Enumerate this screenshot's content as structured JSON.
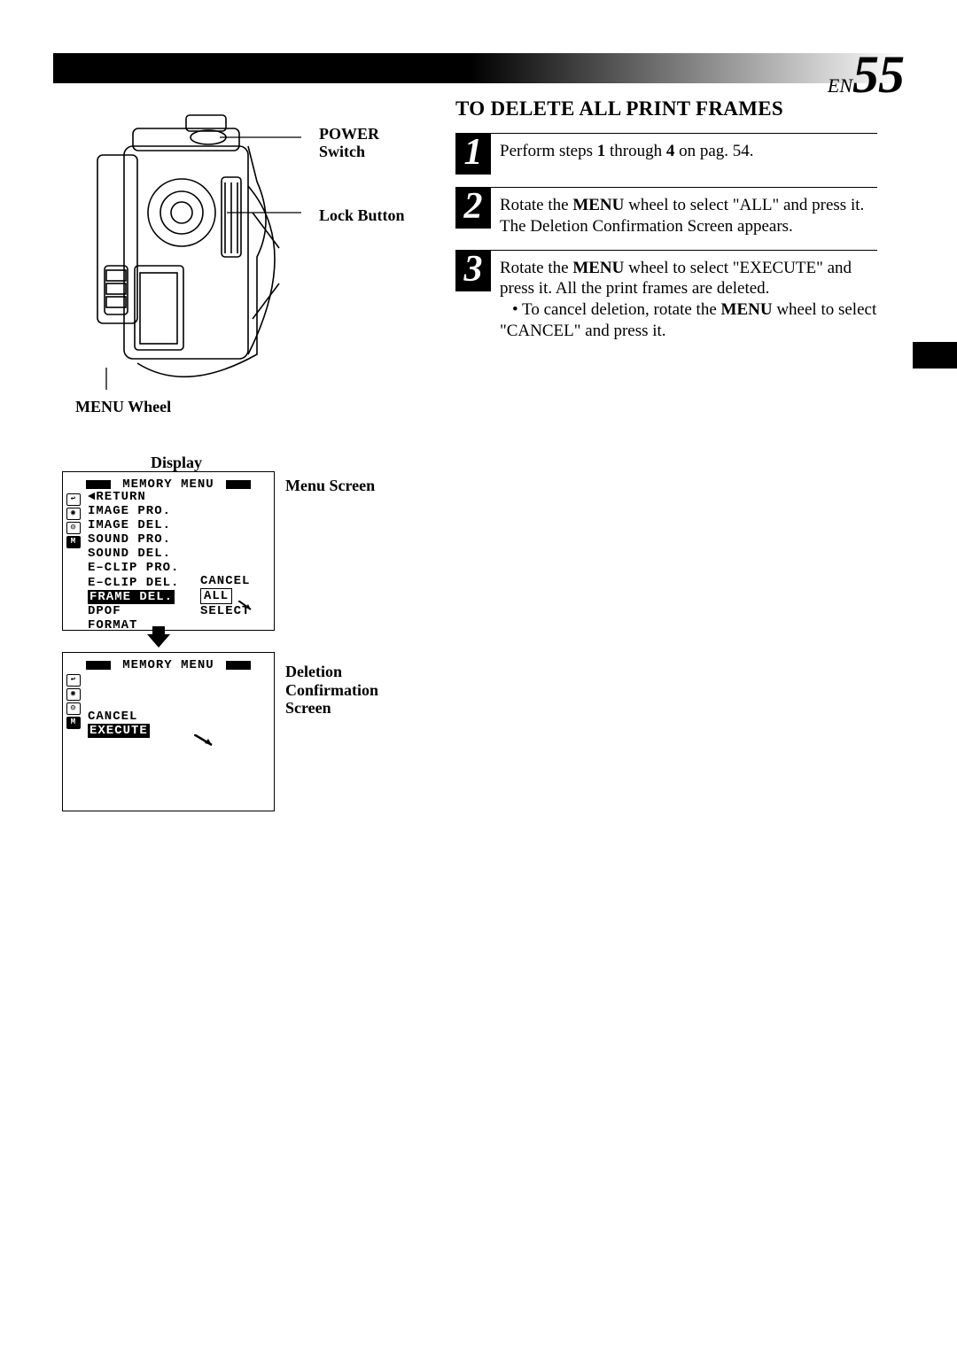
{
  "page": {
    "en_prefix": "EN",
    "number": "55"
  },
  "callouts": {
    "power_switch": "POWER\nSwitch",
    "lock_button": "Lock Button",
    "menu_wheel": "MENU Wheel"
  },
  "display_label": "Display",
  "menu_screen_label": "Menu Screen",
  "confirm_screen_label": "Deletion\nConfirmation\nScreen",
  "menu_screen": {
    "header": "MEMORY  MENU",
    "items": [
      "◄RETURN",
      "IMAGE PRO.",
      "IMAGE DEL.",
      "SOUND PRO.",
      "SOUND DEL.",
      "E–CLIP PRO.",
      "E–CLIP DEL.",
      "FRAME DEL.",
      "DPOF",
      "FORMAT"
    ],
    "highlighted_index": 7,
    "submenu": [
      "CANCEL",
      "ALL",
      "SELECT"
    ],
    "submenu_boxed_index": 1
  },
  "confirm_screen": {
    "header": "MEMORY  MENU",
    "items": [
      "CANCEL",
      "EXECUTE"
    ],
    "highlighted_index": 1
  },
  "section_heading": "TO DELETE ALL PRINT FRAMES",
  "steps": [
    {
      "num": "1",
      "html": "Perform steps <b>1</b> through <b>4</b> on pag. 54."
    },
    {
      "num": "2",
      "html": "Rotate the <b>MENU</b> wheel to select \"ALL\" and press it. The Deletion Confirmation Screen appears."
    },
    {
      "num": "3",
      "html": "Rotate the <b>MENU</b> wheel to select \"EXECUTE\" and press it. All the print frames are deleted.<br><span class=\"bullet-line\">• To cancel deletion, rotate the <b>MENU</b> wheel to select \"CANCEL\" and press it.</span>"
    }
  ],
  "colors": {
    "black": "#000000",
    "white": "#ffffff"
  }
}
